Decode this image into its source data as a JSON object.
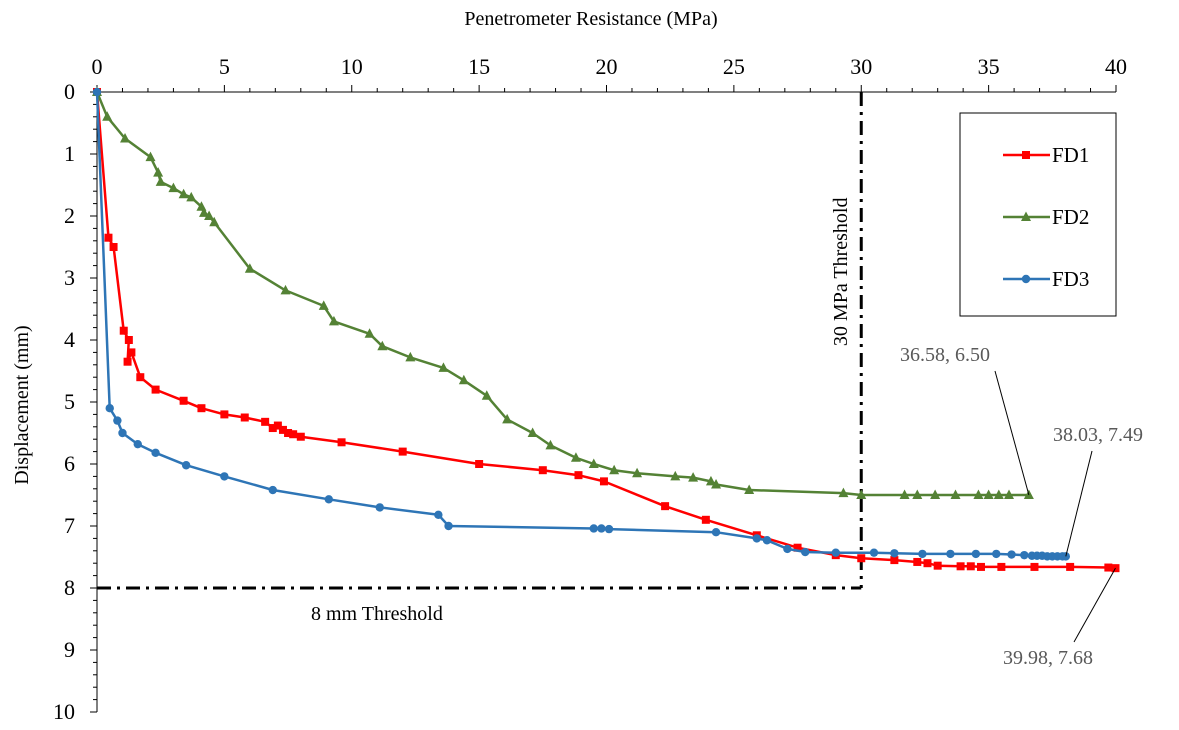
{
  "chart_data": {
    "type": "line",
    "xlabel": "Penetrometer Resistance (MPa)",
    "ylabel": "Displacement (mm)",
    "xlim": [
      0,
      40
    ],
    "ylim": [
      0,
      10
    ],
    "x_axis_position": "top",
    "y_axis_reversed": true,
    "grid": false,
    "legend_position": "top-right",
    "x_ticks": [
      "0",
      "5",
      "10",
      "15",
      "20",
      "25",
      "30",
      "35",
      "40"
    ],
    "y_ticks": [
      "0",
      "1",
      "2",
      "3",
      "4",
      "5",
      "6",
      "7",
      "8",
      "9",
      "10"
    ],
    "series": [
      {
        "name": "FD1",
        "color": "#ff0000",
        "marker": "square",
        "x": [
          0,
          0.45,
          0.65,
          1.05,
          1.25,
          1.2,
          1.35,
          1.7,
          2.3,
          3.4,
          4.1,
          5.0,
          5.8,
          6.6,
          6.9,
          7.1,
          7.3,
          7.5,
          7.7,
          8.0,
          9.6,
          12.0,
          15.0,
          17.5,
          18.9,
          19.9,
          22.3,
          23.9,
          25.9,
          27.5,
          29.0,
          30.0,
          31.3,
          32.2,
          32.6,
          33.0,
          33.9,
          34.3,
          34.7,
          35.5,
          36.8,
          38.2,
          39.7,
          39.98
        ],
        "y": [
          0,
          2.35,
          2.5,
          3.85,
          4.0,
          4.35,
          4.2,
          4.6,
          4.8,
          4.98,
          5.1,
          5.2,
          5.25,
          5.32,
          5.42,
          5.38,
          5.45,
          5.5,
          5.52,
          5.56,
          5.65,
          5.8,
          6.0,
          6.1,
          6.18,
          6.28,
          6.68,
          6.9,
          7.15,
          7.35,
          7.47,
          7.52,
          7.55,
          7.58,
          7.6,
          7.64,
          7.65,
          7.65,
          7.66,
          7.66,
          7.66,
          7.66,
          7.67,
          7.68
        ]
      },
      {
        "name": "FD2",
        "color": "#548235",
        "marker": "triangle",
        "x": [
          0,
          0.4,
          1.1,
          2.1,
          2.4,
          2.5,
          3.0,
          3.4,
          3.7,
          4.1,
          4.2,
          4.4,
          4.6,
          6.0,
          7.4,
          8.9,
          9.3,
          10.7,
          11.2,
          12.3,
          13.6,
          14.4,
          15.3,
          16.1,
          17.1,
          17.8,
          18.8,
          19.5,
          20.3,
          21.2,
          22.7,
          23.4,
          24.1,
          24.3,
          25.6,
          29.3,
          30.0,
          31.7,
          32.2,
          32.9,
          33.7,
          34.6,
          35.0,
          35.4,
          35.8,
          36.58
        ],
        "y": [
          0,
          0.4,
          0.75,
          1.05,
          1.3,
          1.45,
          1.55,
          1.65,
          1.7,
          1.85,
          1.95,
          2.0,
          2.1,
          2.85,
          3.2,
          3.45,
          3.7,
          3.9,
          4.1,
          4.28,
          4.45,
          4.65,
          4.9,
          5.28,
          5.5,
          5.7,
          5.9,
          6.0,
          6.1,
          6.15,
          6.2,
          6.22,
          6.28,
          6.33,
          6.42,
          6.47,
          6.5,
          6.5,
          6.5,
          6.5,
          6.5,
          6.5,
          6.5,
          6.5,
          6.5,
          6.5
        ]
      },
      {
        "name": "FD3",
        "color": "#2e75b6",
        "marker": "circle",
        "x": [
          0,
          0.5,
          0.8,
          1.0,
          1.6,
          2.3,
          3.5,
          5.0,
          6.9,
          9.1,
          11.1,
          13.4,
          13.8,
          19.5,
          19.8,
          20.1,
          24.3,
          25.9,
          26.3,
          27.1,
          27.8,
          29.0,
          30.5,
          31.3,
          32.4,
          33.5,
          34.5,
          35.3,
          35.9,
          36.4,
          36.7,
          36.9,
          37.1,
          37.3,
          37.5,
          37.7,
          37.9,
          38.03
        ],
        "y": [
          0,
          5.1,
          5.3,
          5.5,
          5.68,
          5.82,
          6.02,
          6.2,
          6.42,
          6.57,
          6.7,
          6.82,
          7.0,
          7.04,
          7.04,
          7.05,
          7.1,
          7.2,
          7.23,
          7.37,
          7.42,
          7.43,
          7.43,
          7.44,
          7.45,
          7.45,
          7.45,
          7.45,
          7.46,
          7.47,
          7.48,
          7.48,
          7.48,
          7.49,
          7.49,
          7.49,
          7.49,
          7.49
        ]
      }
    ],
    "reference_lines": [
      {
        "orientation": "vertical",
        "x": 30,
        "y_range": [
          0,
          8
        ],
        "label": "30 MPa   Threshold"
      },
      {
        "orientation": "horizontal",
        "y": 8,
        "x_range": [
          0,
          30
        ],
        "label": "8 mm   Threshold"
      }
    ],
    "annotations": [
      {
        "text": "36.58, 6.50",
        "target": [
          36.58,
          6.5
        ]
      },
      {
        "text": "38.03, 7.49",
        "target": [
          38.03,
          7.49
        ]
      },
      {
        "text": "39.98, 7.68",
        "target": [
          39.98,
          7.68
        ]
      }
    ]
  }
}
